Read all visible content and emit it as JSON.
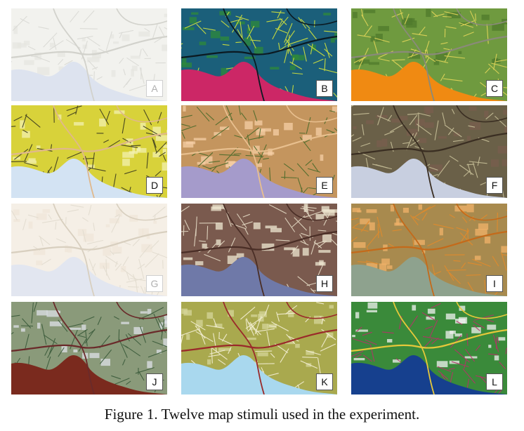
{
  "caption": "Figure 1. Twelve map stimuli used in the experiment.",
  "panels": [
    {
      "label": "A",
      "land": "#f2f2ee",
      "water": "#dde3ef",
      "roads": "#d9d9d4",
      "major": "#d2d2cc",
      "accent": "#e6e6e0",
      "faded": true
    },
    {
      "label": "B",
      "land": "#1b5f7a",
      "water": "#cc2766",
      "roads": "#d7e63a",
      "major": "#0b1a22",
      "accent": "#2f8a3a",
      "faded": false
    },
    {
      "label": "C",
      "land": "#6f9a3f",
      "water": "#f08a12",
      "roads": "#e3d65a",
      "major": "#8a8a7a",
      "accent": "#4f7a2c",
      "faded": false
    },
    {
      "label": "D",
      "land": "#d8d23a",
      "water": "#d3e3f3",
      "roads": "#3a3a1e",
      "major": "#e0b88c",
      "accent": "#f3f0b0",
      "faded": false
    },
    {
      "label": "E",
      "land": "#c4955e",
      "water": "#a59bcb",
      "roads": "#4a6a2a",
      "major": "#e8bf8e",
      "accent": "#f5cfa6",
      "faded": false
    },
    {
      "label": "F",
      "land": "#6a6048",
      "water": "#c8cfe0",
      "roads": "#c9c19a",
      "major": "#3a2e22",
      "accent": "#7a5e4e",
      "faded": false
    },
    {
      "label": "G",
      "land": "#f5efe6",
      "water": "#e2e6f0",
      "roads": "#e2dccf",
      "major": "#d8cfbf",
      "accent": "#efe6d8",
      "faded": true
    },
    {
      "label": "H",
      "land": "#7a5a4e",
      "water": "#6f79a8",
      "roads": "#e6dcc6",
      "major": "#4a2e26",
      "accent": "#efe8d2",
      "faded": false
    },
    {
      "label": "I",
      "land": "#a88a4e",
      "water": "#8ea28e",
      "roads": "#e48a2a",
      "major": "#c46a1a",
      "accent": "#f2b26a",
      "faded": false
    },
    {
      "label": "J",
      "land": "#8a9a7a",
      "water": "#7a2a1e",
      "roads": "#3a5a3a",
      "major": "#6a2a2a",
      "accent": "#dde0e8",
      "faded": false
    },
    {
      "label": "K",
      "land": "#a9a94e",
      "water": "#a9d8ee",
      "roads": "#f6f1d8",
      "major": "#9a2a2a",
      "accent": "#d6d69a",
      "faded": false
    },
    {
      "label": "L",
      "land": "#3a8a3a",
      "water": "#16408e",
      "roads": "#b8306a",
      "major": "#e6c83a",
      "accent": "#f2f2f2",
      "faded": false
    }
  ]
}
